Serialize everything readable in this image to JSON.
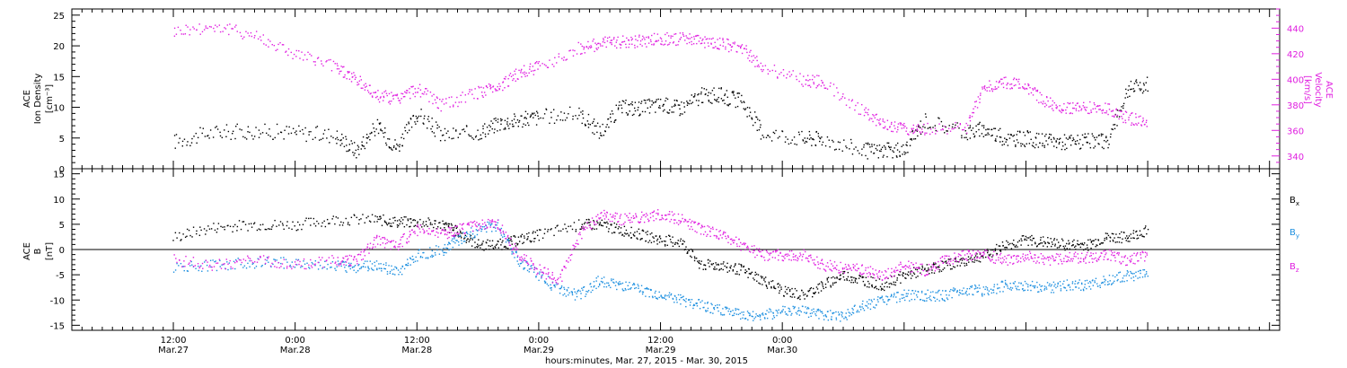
{
  "chart_data": [
    {
      "type": "scatter",
      "panel": "top",
      "ylabel_left": [
        "ACE",
        "Ion Density",
        "[cm⁻³]"
      ],
      "ylabel_right": [
        "ACE",
        "Velocity",
        "[km/s]"
      ],
      "ylim_left": [
        0,
        26
      ],
      "yticks_left": [
        "0",
        "5",
        "10",
        "15",
        "20",
        "25"
      ],
      "ylim_right": [
        330,
        455
      ],
      "yticks_right": [
        "340",
        "360",
        "380",
        "400",
        "420",
        "440"
      ],
      "series": [
        {
          "color": "#000000",
          "axis": "left",
          "points": [
            [
              0,
              4.5
            ],
            [
              4,
              6
            ],
            [
              8,
              6.2
            ],
            [
              12,
              6
            ],
            [
              16,
              5.5
            ],
            [
              18,
              3
            ],
            [
              20,
              7
            ],
            [
              22,
              3.5
            ],
            [
              24,
              9
            ],
            [
              26.5,
              5.5
            ],
            [
              30,
              6
            ],
            [
              32,
              7.5
            ],
            [
              34,
              8
            ],
            [
              36,
              8.5
            ],
            [
              40,
              9
            ],
            [
              42,
              6
            ],
            [
              44,
              10
            ],
            [
              46,
              10
            ],
            [
              48,
              10.5
            ],
            [
              50,
              10
            ],
            [
              52,
              12
            ],
            [
              54,
              12
            ],
            [
              56,
              11
            ],
            [
              58,
              6
            ],
            [
              62,
              5
            ],
            [
              64,
              5
            ],
            [
              68,
              3
            ],
            [
              70,
              3
            ],
            [
              72,
              3
            ],
            [
              74,
              8
            ],
            [
              78,
              6
            ],
            [
              80,
              6.5
            ],
            [
              82,
              5
            ],
            [
              84,
              5
            ],
            [
              86,
              4.5
            ],
            [
              88,
              4.5
            ],
            [
              90,
              4.5
            ],
            [
              92,
              4.5
            ],
            [
              94,
              13
            ],
            [
              96,
              14
            ]
          ]
        },
        {
          "color": "#e020e0",
          "axis": "right",
          "points": [
            [
              0,
              438
            ],
            [
              4,
              442
            ],
            [
              8,
              435
            ],
            [
              12,
              420
            ],
            [
              16,
              410
            ],
            [
              18,
              400
            ],
            [
              20,
              388
            ],
            [
              22,
              385
            ],
            [
              24,
              393
            ],
            [
              26.5,
              380
            ],
            [
              30,
              390
            ],
            [
              32,
              395
            ],
            [
              34,
              405
            ],
            [
              36,
              410
            ],
            [
              40,
              425
            ],
            [
              42,
              428
            ],
            [
              44,
              430
            ],
            [
              46,
              430
            ],
            [
              48,
              432
            ],
            [
              50,
              432
            ],
            [
              52,
              430
            ],
            [
              54,
              428
            ],
            [
              56,
              425
            ],
            [
              58,
              410
            ],
            [
              62,
              400
            ],
            [
              64,
              398
            ],
            [
              68,
              375
            ],
            [
              70,
              365
            ],
            [
              72,
              362
            ],
            [
              74,
              362
            ],
            [
              78,
              362
            ],
            [
              80,
              395
            ],
            [
              82,
              398
            ],
            [
              84,
              395
            ],
            [
              86,
              382
            ],
            [
              88,
              378
            ],
            [
              90,
              378
            ],
            [
              92,
              378
            ],
            [
              94,
              370
            ],
            [
              96,
              368
            ]
          ]
        }
      ]
    },
    {
      "type": "scatter",
      "panel": "bottom",
      "ylabel_left": [
        "ACE",
        "B",
        "[nT]"
      ],
      "ylim": [
        -16,
        16
      ],
      "yticks": [
        "-15",
        "-10",
        "-5",
        "0",
        "5",
        "10",
        "15"
      ],
      "series": [
        {
          "name": "Bx",
          "name_main": "B",
          "name_sub": "x",
          "color": "#000000",
          "points": [
            [
              0,
              2.5
            ],
            [
              4,
              4.5
            ],
            [
              8,
              5
            ],
            [
              12,
              5
            ],
            [
              16,
              6
            ],
            [
              20,
              6
            ],
            [
              22,
              5.5
            ],
            [
              24,
              5.5
            ],
            [
              26.5,
              5
            ],
            [
              28,
              3.5
            ],
            [
              30,
              1
            ],
            [
              32,
              1
            ],
            [
              34,
              2
            ],
            [
              36,
              3
            ],
            [
              40,
              5
            ],
            [
              42,
              5
            ],
            [
              44,
              4
            ],
            [
              46,
              3
            ],
            [
              48,
              2
            ],
            [
              50,
              1.5
            ],
            [
              52,
              -3
            ],
            [
              54,
              -3
            ],
            [
              56,
              -4
            ],
            [
              58,
              -6
            ],
            [
              60,
              -8
            ],
            [
              62,
              -9
            ],
            [
              64,
              -7
            ],
            [
              66,
              -5
            ],
            [
              68,
              -6
            ],
            [
              70,
              -7
            ],
            [
              72,
              -5
            ],
            [
              74,
              -4
            ],
            [
              76,
              -3
            ],
            [
              78,
              -2
            ],
            [
              80,
              -1
            ],
            [
              82,
              1
            ],
            [
              84,
              2
            ],
            [
              86,
              1.5
            ],
            [
              88,
              1
            ],
            [
              90,
              1
            ],
            [
              92,
              2.5
            ],
            [
              94,
              2.5
            ],
            [
              96,
              4
            ]
          ]
        },
        {
          "name": "By",
          "name_main": "B",
          "name_sub": "y",
          "color": "#1e90e0",
          "points": [
            [
              0,
              -3.5
            ],
            [
              4,
              -3
            ],
            [
              8,
              -2.5
            ],
            [
              12,
              -2.5
            ],
            [
              16,
              -3
            ],
            [
              18,
              -3.5
            ],
            [
              20,
              -3
            ],
            [
              22,
              -4.5
            ],
            [
              24,
              -1
            ],
            [
              26.5,
              0
            ],
            [
              28,
              2
            ],
            [
              30,
              4
            ],
            [
              32,
              5
            ],
            [
              34,
              -2
            ],
            [
              36,
              -5
            ],
            [
              38,
              -8
            ],
            [
              40,
              -9
            ],
            [
              42,
              -6
            ],
            [
              44,
              -7
            ],
            [
              46,
              -8
            ],
            [
              48,
              -9
            ],
            [
              50,
              -10
            ],
            [
              52,
              -11
            ],
            [
              54,
              -12
            ],
            [
              56,
              -13
            ],
            [
              58,
              -13
            ],
            [
              60,
              -12
            ],
            [
              62,
              -12
            ],
            [
              64,
              -13
            ],
            [
              66,
              -13
            ],
            [
              68,
              -11
            ],
            [
              70,
              -10
            ],
            [
              72,
              -9
            ],
            [
              74,
              -9
            ],
            [
              76,
              -9
            ],
            [
              78,
              -8
            ],
            [
              80,
              -8
            ],
            [
              82,
              -7
            ],
            [
              84,
              -7
            ],
            [
              86,
              -7.5
            ],
            [
              88,
              -7
            ],
            [
              90,
              -7
            ],
            [
              92,
              -6
            ],
            [
              94,
              -5
            ],
            [
              96,
              -5
            ]
          ]
        },
        {
          "name": "Bz",
          "name_main": "B",
          "name_sub": "z",
          "color": "#e020e0",
          "points": [
            [
              0,
              -2
            ],
            [
              4,
              -3
            ],
            [
              8,
              -2
            ],
            [
              12,
              -3
            ],
            [
              16,
              -2
            ],
            [
              18,
              -2
            ],
            [
              20,
              2
            ],
            [
              22,
              1
            ],
            [
              24,
              4
            ],
            [
              26.5,
              3
            ],
            [
              28,
              4
            ],
            [
              30,
              5
            ],
            [
              32,
              5
            ],
            [
              34,
              -1
            ],
            [
              36,
              -4
            ],
            [
              38,
              -6
            ],
            [
              40,
              3
            ],
            [
              42,
              7
            ],
            [
              44,
              6
            ],
            [
              46,
              6.5
            ],
            [
              48,
              7
            ],
            [
              50,
              6
            ],
            [
              52,
              4
            ],
            [
              54,
              3
            ],
            [
              56,
              1
            ],
            [
              58,
              -1
            ],
            [
              60,
              -1
            ],
            [
              62,
              -1
            ],
            [
              64,
              -3
            ],
            [
              66,
              -3.5
            ],
            [
              68,
              -4
            ],
            [
              70,
              -5
            ],
            [
              72,
              -3
            ],
            [
              74,
              -4
            ],
            [
              76,
              -2
            ],
            [
              78,
              -1
            ],
            [
              80,
              -1
            ],
            [
              82,
              -2
            ],
            [
              84,
              -1
            ],
            [
              86,
              -2
            ],
            [
              88,
              -1.5
            ],
            [
              90,
              -1.5
            ],
            [
              92,
              -1
            ],
            [
              94,
              -2
            ],
            [
              96,
              -1
            ]
          ]
        }
      ]
    }
  ],
  "x_axis": {
    "range_hours": [
      -10,
      109
    ],
    "ticks": [
      {
        "h": 0,
        "time": "12:00",
        "date": "Mar.27"
      },
      {
        "h": 12,
        "time": "0:00",
        "date": "Mar.28"
      },
      {
        "h": 24,
        "time": "12:00",
        "date": "Mar.28"
      },
      {
        "h": 36,
        "time": "0:00",
        "date": "Mar.29"
      },
      {
        "h": 48,
        "time": "12:00",
        "date": "Mar.29"
      },
      {
        "h": 60,
        "time": "0:00",
        "date": "Mar.30"
      }
    ],
    "xlabel": "hours:minutes, Mar. 27, 2015 - Mar. 30, 2015"
  }
}
